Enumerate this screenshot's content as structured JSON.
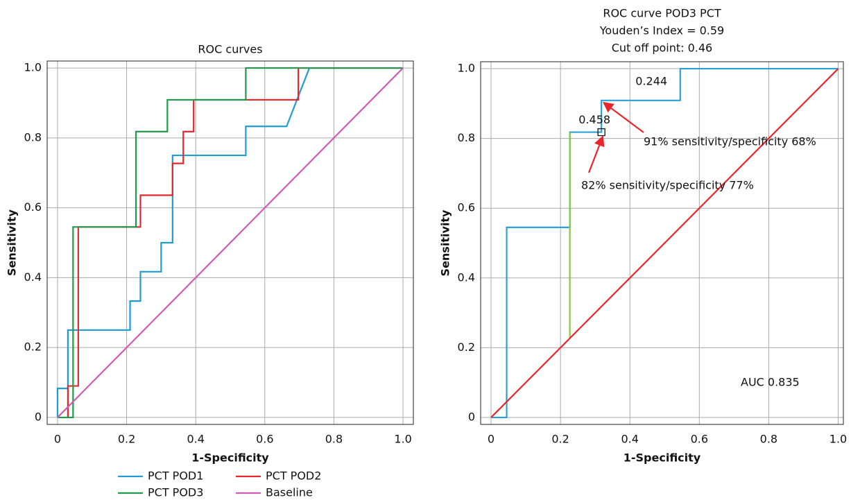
{
  "chart_data": [
    {
      "type": "line",
      "title": "ROC curves",
      "xlabel": "1-Specificity",
      "ylabel": "Sensitivity",
      "xlim": [
        -0.03,
        1.03
      ],
      "ylim": [
        -0.02,
        1.02
      ],
      "xticks": [
        0,
        0.2,
        0.4,
        0.6,
        0.8,
        {
          "value": 1,
          "label": "1.0"
        }
      ],
      "yticks": [
        0,
        0.2,
        0.4,
        0.6,
        0.8,
        {
          "value": 1,
          "label": "1.0"
        }
      ],
      "grid": true,
      "legend": "bottom",
      "series": [
        {
          "name": "PCT POD1",
          "color": "#1f9bd7",
          "x": [
            0,
            0,
            0.03,
            0.03,
            0.21,
            0.21,
            0.24,
            0.24,
            0.3,
            0.3,
            0.333,
            0.333,
            0.545,
            0.545,
            0.663,
            0.729,
            1
          ],
          "values": [
            0,
            0.083,
            0.083,
            0.25,
            0.25,
            0.333,
            0.333,
            0.417,
            0.417,
            0.5,
            0.5,
            0.75,
            0.75,
            0.833,
            0.833,
            1,
            1
          ]
        },
        {
          "name": "PCT POD2",
          "color": "#e8262b",
          "x": [
            0.03,
            0.03,
            0.06,
            0.06,
            0.24,
            0.24,
            0.333,
            0.333,
            0.364,
            0.364,
            0.394,
            0.394,
            0.697,
            0.697,
            1
          ],
          "values": [
            0,
            0.09,
            0.09,
            0.545,
            0.545,
            0.636,
            0.636,
            0.727,
            0.727,
            0.818,
            0.818,
            0.909,
            0.909,
            1,
            1
          ]
        },
        {
          "name": "PCT POD3",
          "color": "#1f9a4a",
          "x": [
            0,
            0.045,
            0.045,
            0.227,
            0.227,
            0.318,
            0.318,
            0.545,
            0.545,
            1
          ],
          "values": [
            0,
            0,
            0.545,
            0.545,
            0.818,
            0.818,
            0.909,
            0.909,
            1,
            1
          ]
        },
        {
          "name": "Baseline",
          "color": "#d05bb5",
          "x": [
            0,
            1
          ],
          "values": [
            0,
            1
          ]
        }
      ]
    },
    {
      "type": "line",
      "title": "ROC curve POD3 PCT",
      "subtitle": [
        "Youden’s Index = 0.59",
        "Cut off point: 0.46"
      ],
      "xlabel": "1-Specificity",
      "ylabel": "Sensitivity",
      "xlim": [
        -0.03,
        1.015
      ],
      "ylim": [
        -0.02,
        1.02
      ],
      "xticks": [
        0,
        0.2,
        0.4,
        0.6,
        0.8,
        {
          "value": 1,
          "label": "1.0"
        }
      ],
      "yticks": [
        0,
        0.2,
        0.4,
        0.6,
        0.8,
        {
          "value": 1,
          "label": "1.0"
        }
      ],
      "grid": true,
      "series": [
        {
          "color": "#2aa0d8",
          "x": [
            0,
            0.045,
            0.045,
            0.227,
            0.227,
            0.318,
            0.318,
            0.545,
            0.545,
            1
          ],
          "values": [
            0,
            0,
            0.545,
            0.545,
            0.818,
            0.818,
            0.909,
            0.909,
            1,
            1
          ]
        },
        {
          "color": "#8bc63f",
          "x": [
            0.227,
            0.227
          ],
          "values": [
            0.227,
            0.818
          ]
        },
        {
          "color": "#e8262b",
          "x": [
            0,
            1
          ],
          "values": [
            0,
            1
          ]
        }
      ],
      "annotations": [
        "0.244",
        "0.458",
        "91% sensitivity/specificity 68%",
        "82% sensitivity/specificity 77%",
        "AUC 0.835"
      ]
    }
  ]
}
